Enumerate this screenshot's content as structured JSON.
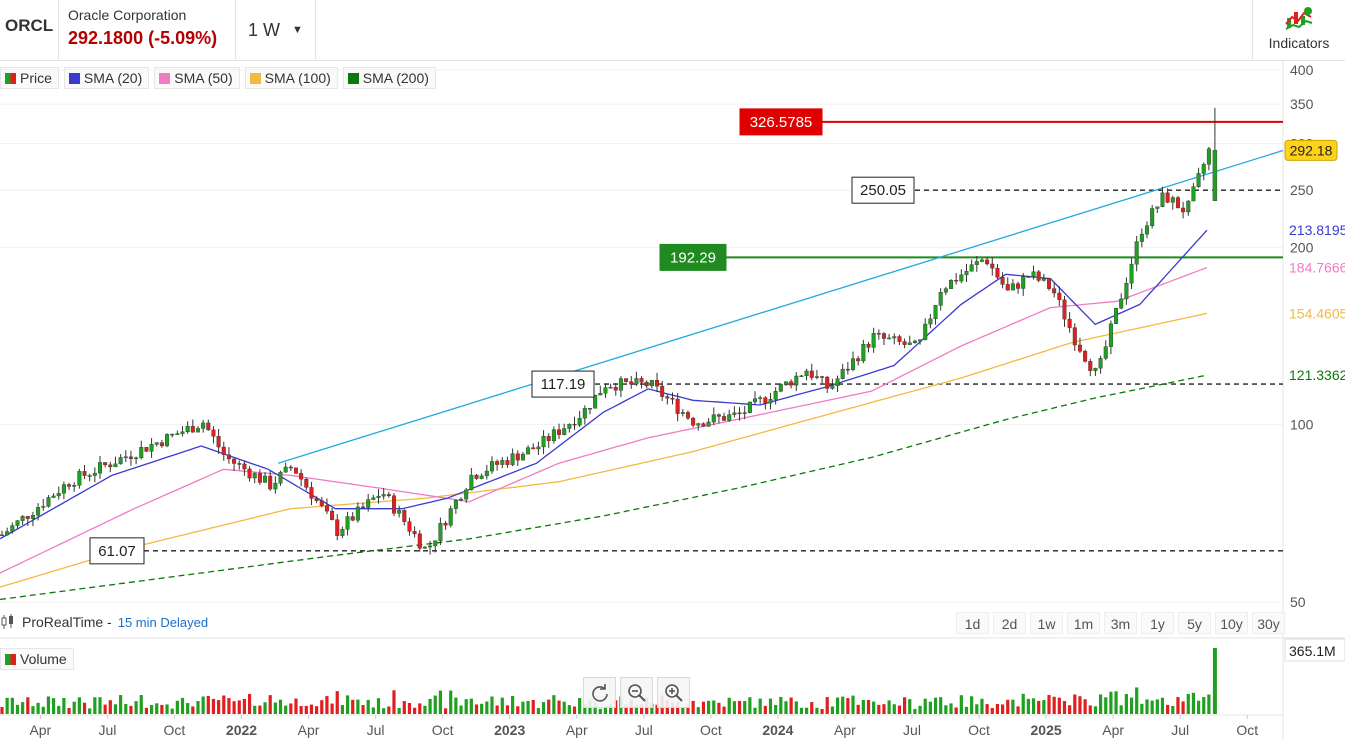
{
  "header": {
    "ticker": "ORCL",
    "company": "Oracle Corporation",
    "quote": "292.1800 (-5.09%)",
    "interval": "1 W",
    "indicators_label": "Indicators"
  },
  "legend": [
    {
      "label": "Price",
      "color": "#20a020"
    },
    {
      "label": "SMA (20)",
      "color": "#3a3ad0"
    },
    {
      "label": "SMA (50)",
      "color": "#f07cc4"
    },
    {
      "label": "SMA (100)",
      "color": "#f5b942"
    },
    {
      "label": "SMA (200)",
      "color": "#0a7a0a"
    }
  ],
  "footer": {
    "source": "ProRealTime -",
    "delay": "15 min Delayed",
    "volume_label": "Volume",
    "ranges": [
      "1d",
      "2d",
      "1w",
      "1m",
      "3m",
      "1y",
      "5y",
      "10y",
      "30y"
    ]
  },
  "chart_data": {
    "type": "candlestick",
    "y_scale": "log",
    "ylim": [
      50,
      400
    ],
    "y_ticks": [
      50,
      100,
      200,
      250,
      300,
      350,
      400
    ],
    "x_tick_labels": [
      "Apr",
      "Jul",
      "Oct",
      "2022",
      "Apr",
      "Jul",
      "Oct",
      "2023",
      "Apr",
      "Jul",
      "Oct",
      "2024",
      "Apr",
      "Jul",
      "Oct",
      "2025",
      "Apr",
      "Jul",
      "Oct"
    ],
    "last_price": "292.18",
    "last_price_value": 292.18,
    "sma_labels": [
      {
        "name": "SMA (20)",
        "label": "213.8195",
        "value": 213.8195,
        "color": "#3a3ad0"
      },
      {
        "name": "SMA (50)",
        "label": "184.7666",
        "value": 184.7666,
        "color": "#f07cc4"
      },
      {
        "name": "SMA (100)",
        "label": "154.4605",
        "value": 154.4605,
        "color": "#f5b942"
      },
      {
        "name": "SMA (200)",
        "label": "121.3362",
        "value": 121.3362,
        "color": "#0a7a0a"
      }
    ],
    "levels": [
      {
        "label": "326.5785",
        "value": 326.5785,
        "style": "solid",
        "color": "#e00000",
        "label_bg": "#e00000"
      },
      {
        "label": "250.05",
        "value": 250.05,
        "style": "dashed",
        "color": "#222222",
        "label_bg": "#ffffff"
      },
      {
        "label": "192.29",
        "value": 192.29,
        "style": "solid",
        "color": "#1f8a1f",
        "label_bg": "#1f8a1f"
      },
      {
        "label": "117.19",
        "value": 117.19,
        "style": "dashed",
        "color": "#222222",
        "label_bg": "#ffffff"
      },
      {
        "label": "61.07",
        "value": 61.07,
        "style": "dashed",
        "color": "#222222",
        "label_bg": "#ffffff"
      }
    ],
    "trendline": {
      "color": "#22aadd",
      "from": {
        "date": "2022-03",
        "value": 86
      },
      "to": {
        "date": "2025-10",
        "value": 292
      }
    },
    "volume_label": "365.1M",
    "price_anchors": [
      {
        "date": "2021-03",
        "value": 65
      },
      {
        "date": "2021-06",
        "value": 80
      },
      {
        "date": "2021-09",
        "value": 90
      },
      {
        "date": "2021-12",
        "value": 101
      },
      {
        "date": "2022-01",
        "value": 88
      },
      {
        "date": "2022-03",
        "value": 79
      },
      {
        "date": "2022-04",
        "value": 85
      },
      {
        "date": "2022-06",
        "value": 66
      },
      {
        "date": "2022-08",
        "value": 77
      },
      {
        "date": "2022-10",
        "value": 61.07
      },
      {
        "date": "2022-12",
        "value": 82
      },
      {
        "date": "2023-03",
        "value": 92
      },
      {
        "date": "2023-05",
        "value": 105
      },
      {
        "date": "2023-06",
        "value": 117.19
      },
      {
        "date": "2023-08",
        "value": 117
      },
      {
        "date": "2023-10",
        "value": 101
      },
      {
        "date": "2023-12",
        "value": 104
      },
      {
        "date": "2024-01",
        "value": 110
      },
      {
        "date": "2024-03",
        "value": 124
      },
      {
        "date": "2024-04",
        "value": 115
      },
      {
        "date": "2024-06",
        "value": 141
      },
      {
        "date": "2024-08",
        "value": 135
      },
      {
        "date": "2024-09",
        "value": 170
      },
      {
        "date": "2024-11",
        "value": 192
      },
      {
        "date": "2024-12",
        "value": 168
      },
      {
        "date": "2025-01",
        "value": 180
      },
      {
        "date": "2025-02",
        "value": 170
      },
      {
        "date": "2025-03",
        "value": 140
      },
      {
        "date": "2025-04",
        "value": 121
      },
      {
        "date": "2025-05",
        "value": 162
      },
      {
        "date": "2025-06",
        "value": 215
      },
      {
        "date": "2025-07",
        "value": 245
      },
      {
        "date": "2025-08",
        "value": 230
      },
      {
        "date": "2025-09",
        "value": 292.18
      }
    ],
    "sma_anchors": {
      "sma20": [
        {
          "date": "2021-03",
          "value": 64
        },
        {
          "date": "2021-08",
          "value": 82
        },
        {
          "date": "2021-12",
          "value": 92
        },
        {
          "date": "2022-03",
          "value": 84
        },
        {
          "date": "2022-06",
          "value": 72
        },
        {
          "date": "2022-09",
          "value": 72
        },
        {
          "date": "2022-11",
          "value": 75
        },
        {
          "date": "2023-03",
          "value": 86
        },
        {
          "date": "2023-06",
          "value": 105
        },
        {
          "date": "2023-08",
          "value": 115
        },
        {
          "date": "2023-10",
          "value": 110
        },
        {
          "date": "2024-01",
          "value": 108
        },
        {
          "date": "2024-04",
          "value": 116
        },
        {
          "date": "2024-07",
          "value": 126
        },
        {
          "date": "2024-10",
          "value": 160
        },
        {
          "date": "2024-12",
          "value": 180
        },
        {
          "date": "2025-02",
          "value": 177
        },
        {
          "date": "2025-04",
          "value": 148
        },
        {
          "date": "2025-06",
          "value": 160
        },
        {
          "date": "2025-09",
          "value": 213.82
        }
      ],
      "sma50": [
        {
          "date": "2021-03",
          "value": 56
        },
        {
          "date": "2021-09",
          "value": 72
        },
        {
          "date": "2022-01",
          "value": 84
        },
        {
          "date": "2022-04",
          "value": 82
        },
        {
          "date": "2022-08",
          "value": 78
        },
        {
          "date": "2022-12",
          "value": 74
        },
        {
          "date": "2023-04",
          "value": 86
        },
        {
          "date": "2023-08",
          "value": 95
        },
        {
          "date": "2024-01",
          "value": 104
        },
        {
          "date": "2024-06",
          "value": 114
        },
        {
          "date": "2024-10",
          "value": 136
        },
        {
          "date": "2025-02",
          "value": 158
        },
        {
          "date": "2025-05",
          "value": 162
        },
        {
          "date": "2025-09",
          "value": 184.77
        }
      ],
      "sma100": [
        {
          "date": "2021-03",
          "value": 53
        },
        {
          "date": "2021-09",
          "value": 62
        },
        {
          "date": "2022-04",
          "value": 72
        },
        {
          "date": "2022-10",
          "value": 75
        },
        {
          "date": "2023-04",
          "value": 80
        },
        {
          "date": "2023-10",
          "value": 90
        },
        {
          "date": "2024-04",
          "value": 104
        },
        {
          "date": "2024-10",
          "value": 120
        },
        {
          "date": "2025-03",
          "value": 138
        },
        {
          "date": "2025-09",
          "value": 154.46
        }
      ],
      "sma200": [
        {
          "date": "2021-03",
          "value": 50.5
        },
        {
          "date": "2021-12",
          "value": 56
        },
        {
          "date": "2022-06",
          "value": 60
        },
        {
          "date": "2022-12",
          "value": 64
        },
        {
          "date": "2023-06",
          "value": 70
        },
        {
          "date": "2023-12",
          "value": 78
        },
        {
          "date": "2024-06",
          "value": 88
        },
        {
          "date": "2024-12",
          "value": 102
        },
        {
          "date": "2025-04",
          "value": 111
        },
        {
          "date": "2025-09",
          "value": 121.34
        }
      ]
    }
  }
}
